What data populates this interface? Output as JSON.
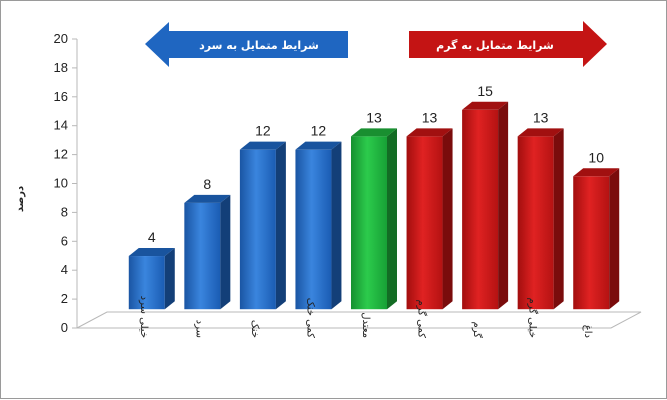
{
  "chart_data": {
    "type": "bar",
    "ylabel": "درصد",
    "ylim": [
      0,
      20
    ],
    "yticks": [
      0,
      2,
      4,
      6,
      8,
      10,
      12,
      14,
      16,
      18,
      20
    ],
    "grid": false,
    "categories": [
      "خیلی سرد",
      "سرد",
      "خنک",
      "کمی خنک",
      "معتدل",
      "کمی گرم",
      "گرم",
      "خیلی گرم",
      "داغ"
    ],
    "values": [
      4,
      8,
      12,
      12,
      13,
      13,
      15,
      13,
      10
    ],
    "data_labels": [
      "4",
      "8",
      "12",
      "12",
      "13",
      "13",
      "15",
      "13",
      "10"
    ],
    "colors": [
      "#1f66c1",
      "#1f66c1",
      "#1f66c1",
      "#1f66c1",
      "#1fae3a",
      "#c41414",
      "#c41414",
      "#c41414",
      "#c41414"
    ],
    "annotations": [
      {
        "text": "شرایط متمایل به سرد",
        "direction": "left",
        "color": "#1f66c1"
      },
      {
        "text": "شرایط متمایل به گرم",
        "direction": "right",
        "color": "#c41414"
      }
    ]
  }
}
